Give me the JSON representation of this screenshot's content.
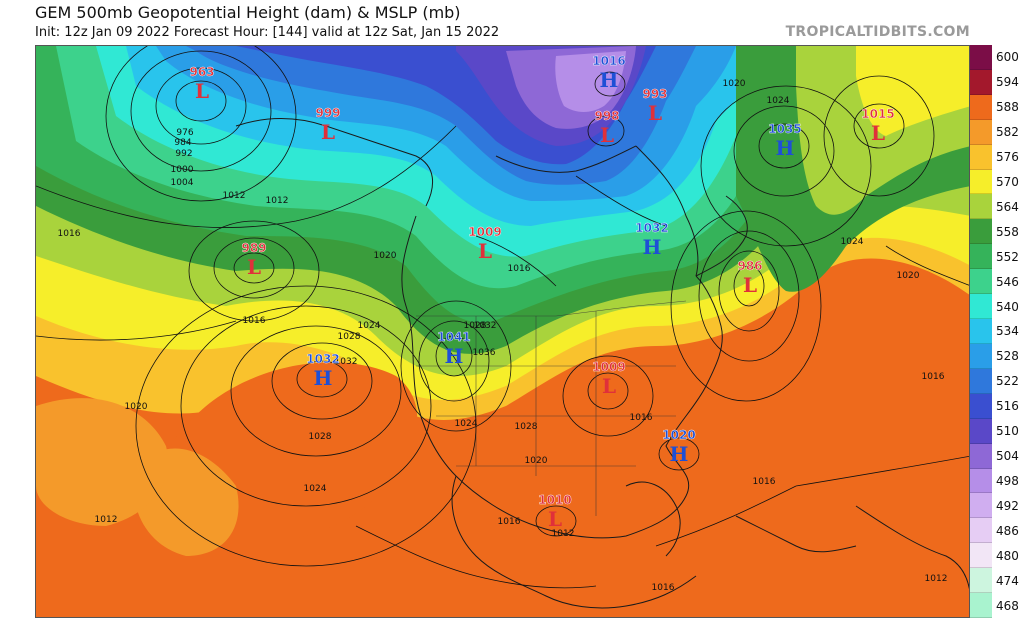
{
  "header": {
    "title": "GEM 500mb Geopotential Height (dam) & MSLP (mb)",
    "subtitle": "Init: 12z Jan 09 2022   Forecast Hour: [144]   valid at 12z Sat, Jan 15 2022",
    "site": "TROPICALTIDBITS.COM"
  },
  "colorbar": [
    {
      "label": "600",
      "color": "#7b0d47"
    },
    {
      "label": "594",
      "color": "#a3182c"
    },
    {
      "label": "588",
      "color": "#ee6a1c"
    },
    {
      "label": "582",
      "color": "#f49a2a"
    },
    {
      "label": "576",
      "color": "#f9c22d"
    },
    {
      "label": "570",
      "color": "#f6ee2a"
    },
    {
      "label": "564",
      "color": "#a9d33c"
    },
    {
      "label": "558",
      "color": "#3a9d3c"
    },
    {
      "label": "552",
      "color": "#35b35a"
    },
    {
      "label": "546",
      "color": "#3dd28c"
    },
    {
      "label": "540",
      "color": "#30e8d4"
    },
    {
      "label": "534",
      "color": "#29c4ec"
    },
    {
      "label": "528",
      "color": "#2a9ee8"
    },
    {
      "label": "522",
      "color": "#2f78dc"
    },
    {
      "label": "516",
      "color": "#3a4fd0"
    },
    {
      "label": "510",
      "color": "#5a48c8"
    },
    {
      "label": "504",
      "color": "#8e68d6"
    },
    {
      "label": "498",
      "color": "#b58ee8"
    },
    {
      "label": "492",
      "color": "#d0aef0"
    },
    {
      "label": "486",
      "color": "#e6cdf4"
    },
    {
      "label": "480",
      "color": "#f2e6f6"
    },
    {
      "label": "474",
      "color": "#cdf5df"
    },
    {
      "label": "468",
      "color": "#a9f3cf"
    }
  ],
  "centers": [
    {
      "type": "L",
      "pressure": "963",
      "color": "#e0303a"
    },
    {
      "type": "L",
      "pressure": "999",
      "color": "#e0303a"
    },
    {
      "type": "L",
      "pressure": "989",
      "color": "#e0303a"
    },
    {
      "type": "L",
      "pressure": "1009",
      "color": "#e0303a"
    },
    {
      "type": "L",
      "pressure": "998",
      "color": "#e0303a"
    },
    {
      "type": "L",
      "pressure": "993",
      "color": "#e0303a"
    },
    {
      "type": "L",
      "pressure": "986",
      "color": "#e0303a"
    },
    {
      "type": "L",
      "pressure": "1009",
      "color": "#e0303a"
    },
    {
      "type": "L",
      "pressure": "1010",
      "color": "#e0303a"
    },
    {
      "type": "L",
      "pressure": "1015",
      "color": "#e0303a"
    },
    {
      "type": "H",
      "pressure": "1032",
      "color": "#1e4fd6"
    },
    {
      "type": "H",
      "pressure": "1041",
      "color": "#1e4fd6"
    },
    {
      "type": "H",
      "pressure": "1020",
      "color": "#1e4fd6"
    },
    {
      "type": "H",
      "pressure": "1035",
      "color": "#1e4fd6"
    },
    {
      "type": "H",
      "pressure": "1032",
      "color": "#1e4fd6"
    },
    {
      "type": "H",
      "pressure": "1016",
      "color": "#1e4fd6"
    }
  ],
  "isobar_labels": [
    "976",
    "984",
    "992",
    "1000",
    "1004",
    "1012",
    "1012",
    "1016",
    "1016",
    "1016",
    "1020",
    "1020",
    "1024",
    "1024",
    "1028",
    "1028",
    "1028",
    "1032",
    "1036",
    "1016",
    "1020",
    "1024",
    "1028",
    "1032",
    "1016",
    "1012",
    "1016",
    "1024",
    "1020",
    "1024",
    "1020",
    "1016",
    "1012",
    "1016",
    "1012"
  ]
}
